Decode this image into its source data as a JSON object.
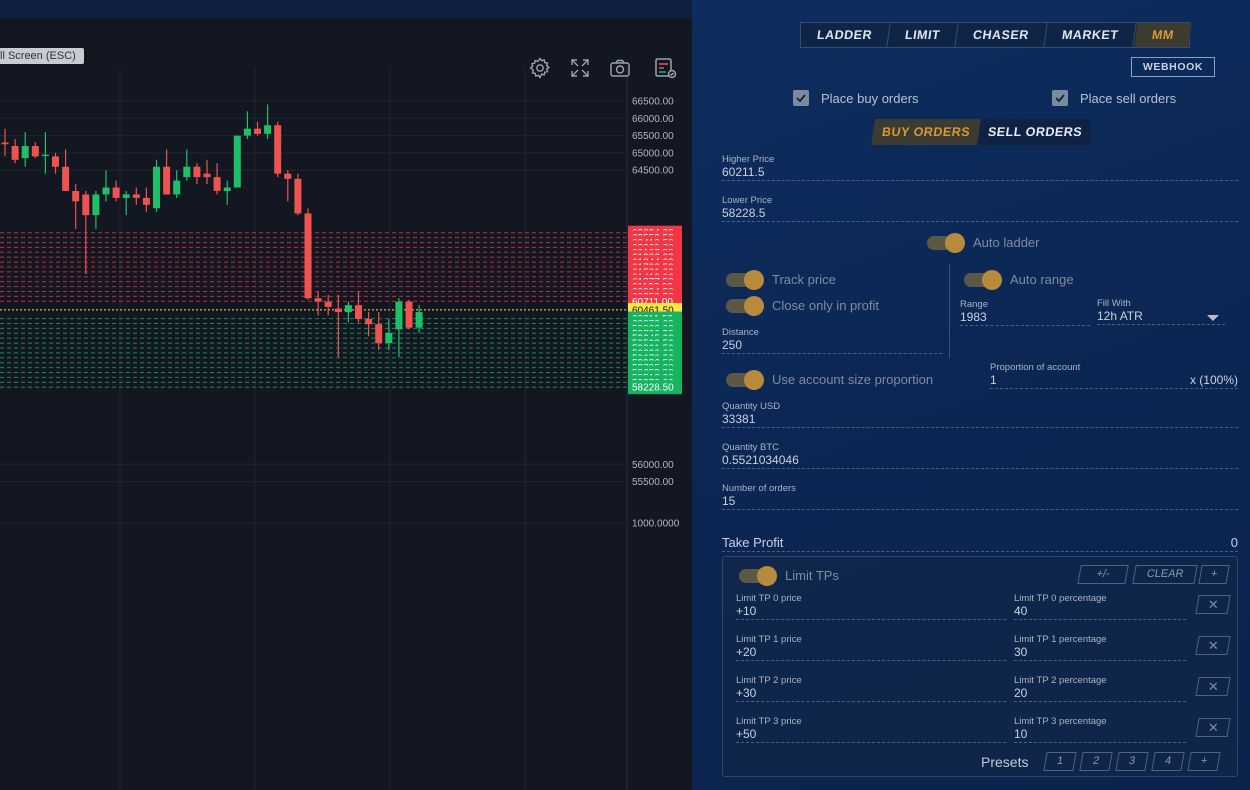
{
  "chart": {
    "fullscreen_badge": "ll Screen (ESC)",
    "toolbar_icons": [
      "gear-icon",
      "expand-icon",
      "camera-icon",
      "indicator-icon"
    ],
    "price_axis": [
      {
        "label": "66500.00",
        "price": 66500,
        "type": "axis"
      },
      {
        "label": "66000.00",
        "price": 66000,
        "type": "axis"
      },
      {
        "label": "65500.00",
        "price": 65500,
        "type": "axis"
      },
      {
        "label": "65000.00",
        "price": 65000,
        "type": "axis"
      },
      {
        "label": "64500.00",
        "price": 64500,
        "type": "axis"
      },
      {
        "label": "62694.00",
        "price": 62694,
        "type": "sell"
      },
      {
        "label": "62552.50",
        "price": 62552.5,
        "type": "sell"
      },
      {
        "label": "62410.50",
        "price": 62410.5,
        "type": "sell"
      },
      {
        "label": "62269.00",
        "price": 62269,
        "type": "sell"
      },
      {
        "label": "62127.50",
        "price": 62127.5,
        "type": "sell"
      },
      {
        "label": "61986.00",
        "price": 61986,
        "type": "sell"
      },
      {
        "label": "61844.00",
        "price": 61844,
        "type": "sell"
      },
      {
        "label": "61702.50",
        "price": 61702.5,
        "type": "sell"
      },
      {
        "label": "61561.00",
        "price": 61561,
        "type": "sell"
      },
      {
        "label": "61419.00",
        "price": 61419,
        "type": "sell"
      },
      {
        "label": "61277.50",
        "price": 61277.5,
        "type": "sell"
      },
      {
        "label": "61136.00",
        "price": 61136,
        "type": "sell"
      },
      {
        "label": "60994.50",
        "price": 60994.5,
        "type": "sell"
      },
      {
        "label": "60852.50",
        "price": 60852.5,
        "type": "sell"
      },
      {
        "label": "60711.00",
        "price": 60711,
        "type": "sell"
      },
      {
        "label": "60461.50",
        "price": 60461.5,
        "type": "current"
      },
      {
        "label": "60211.50",
        "price": 60211.5,
        "type": "buy"
      },
      {
        "label": "60070.00",
        "price": 60070,
        "type": "buy"
      },
      {
        "label": "59928.00",
        "price": 59928,
        "type": "buy"
      },
      {
        "label": "59786.50",
        "price": 59786.5,
        "type": "buy"
      },
      {
        "label": "59645.00",
        "price": 59645,
        "type": "buy"
      },
      {
        "label": "59503.50",
        "price": 59503.5,
        "type": "buy"
      },
      {
        "label": "59361.50",
        "price": 59361.5,
        "type": "buy"
      },
      {
        "label": "59220.00",
        "price": 59220,
        "type": "buy"
      },
      {
        "label": "59078.50",
        "price": 59078.5,
        "type": "buy"
      },
      {
        "label": "58936.50",
        "price": 58936.5,
        "type": "buy"
      },
      {
        "label": "58795.00",
        "price": 58795,
        "type": "buy"
      },
      {
        "label": "58653.50",
        "price": 58653.5,
        "type": "buy"
      },
      {
        "label": "58512.00",
        "price": 58512,
        "type": "buy"
      },
      {
        "label": "58370.00",
        "price": 58370,
        "type": "buy"
      },
      {
        "label": "58228.50",
        "price": 58228.5,
        "type": "buy"
      },
      {
        "label": "56000.00",
        "price": 56000,
        "type": "axis"
      },
      {
        "label": "55500.00",
        "price": 55500,
        "type": "axis"
      },
      {
        "label": "1000.0000",
        "price": 54300,
        "type": "axis"
      }
    ],
    "candles": [
      {
        "o": 65300,
        "h": 65700,
        "l": 64900,
        "c": 65250
      },
      {
        "o": 65200,
        "h": 65400,
        "l": 64700,
        "c": 64800
      },
      {
        "o": 64850,
        "h": 65600,
        "l": 64600,
        "c": 65200
      },
      {
        "o": 65200,
        "h": 65300,
        "l": 64850,
        "c": 64900
      },
      {
        "o": 64950,
        "h": 65600,
        "l": 64400,
        "c": 64950
      },
      {
        "o": 64900,
        "h": 65000,
        "l": 64400,
        "c": 64600
      },
      {
        "o": 64600,
        "h": 65100,
        "l": 63900,
        "c": 63900
      },
      {
        "o": 63900,
        "h": 64100,
        "l": 62800,
        "c": 63600
      },
      {
        "o": 63800,
        "h": 63900,
        "l": 61500,
        "c": 63200
      },
      {
        "o": 63200,
        "h": 63900,
        "l": 62800,
        "c": 63800
      },
      {
        "o": 63800,
        "h": 64500,
        "l": 63600,
        "c": 64000
      },
      {
        "o": 64000,
        "h": 64200,
        "l": 63600,
        "c": 63700
      },
      {
        "o": 63700,
        "h": 63900,
        "l": 63200,
        "c": 63800
      },
      {
        "o": 63800,
        "h": 64000,
        "l": 63500,
        "c": 63700
      },
      {
        "o": 63700,
        "h": 64000,
        "l": 63300,
        "c": 63500
      },
      {
        "o": 63400,
        "h": 64800,
        "l": 63300,
        "c": 64600
      },
      {
        "o": 64600,
        "h": 65100,
        "l": 63800,
        "c": 63800
      },
      {
        "o": 63800,
        "h": 64500,
        "l": 63700,
        "c": 64200
      },
      {
        "o": 64300,
        "h": 65100,
        "l": 64200,
        "c": 64600
      },
      {
        "o": 64600,
        "h": 64700,
        "l": 64100,
        "c": 64300
      },
      {
        "o": 64400,
        "h": 64800,
        "l": 64100,
        "c": 64300
      },
      {
        "o": 64300,
        "h": 64700,
        "l": 63800,
        "c": 63900
      },
      {
        "o": 63900,
        "h": 64200,
        "l": 63500,
        "c": 64000
      },
      {
        "o": 64000,
        "h": 65500,
        "l": 64000,
        "c": 65500
      },
      {
        "o": 65500,
        "h": 66200,
        "l": 65400,
        "c": 65700
      },
      {
        "o": 65700,
        "h": 65900,
        "l": 65500,
        "c": 65550
      },
      {
        "o": 65550,
        "h": 66400,
        "l": 65400,
        "c": 65800
      },
      {
        "o": 65800,
        "h": 65900,
        "l": 64300,
        "c": 64400
      },
      {
        "o": 64400,
        "h": 64500,
        "l": 63600,
        "c": 64250
      },
      {
        "o": 64250,
        "h": 64400,
        "l": 63200,
        "c": 63250
      },
      {
        "o": 63250,
        "h": 63400,
        "l": 60750,
        "c": 60800
      },
      {
        "o": 60800,
        "h": 61000,
        "l": 60300,
        "c": 60700
      },
      {
        "o": 60700,
        "h": 60900,
        "l": 60300,
        "c": 60550
      },
      {
        "o": 60500,
        "h": 60900,
        "l": 59100,
        "c": 60400
      },
      {
        "o": 60400,
        "h": 60700,
        "l": 60100,
        "c": 60600
      },
      {
        "o": 60600,
        "h": 61000,
        "l": 60100,
        "c": 60200
      },
      {
        "o": 60200,
        "h": 60400,
        "l": 59700,
        "c": 60050
      },
      {
        "o": 60050,
        "h": 60400,
        "l": 59300,
        "c": 59500
      },
      {
        "o": 59500,
        "h": 60200,
        "l": 59300,
        "c": 59800
      },
      {
        "o": 59900,
        "h": 60800,
        "l": 59100,
        "c": 60700
      },
      {
        "o": 60700,
        "h": 60750,
        "l": 59900,
        "c": 59950
      },
      {
        "o": 59950,
        "h": 60600,
        "l": 59800,
        "c": 60400
      }
    ]
  },
  "panel": {
    "tabs": [
      "LADDER",
      "LIMIT",
      "CHASER",
      "MARKET",
      "MM"
    ],
    "webhook": "WEBHOOK",
    "place_buy_orders": "Place buy orders",
    "place_sell_orders": "Place sell orders",
    "order_tabs": [
      "BUY ORDERS",
      "SELL ORDERS"
    ],
    "higher_price": {
      "label": "Higher Price",
      "value": "60211.5"
    },
    "lower_price": {
      "label": "Lower Price",
      "value": "58228.5"
    },
    "auto_ladder": "Auto ladder",
    "track_price": "Track price",
    "close_only_in_profit": "Close only in profit",
    "auto_range": "Auto range",
    "range": {
      "label": "Range",
      "value": "1983"
    },
    "fill_with": {
      "label": "Fill With",
      "value": "12h ATR"
    },
    "distance": {
      "label": "Distance",
      "value": "250"
    },
    "use_account_size": "Use account size proportion",
    "proportion": {
      "label": "Proportion of account",
      "value": "1",
      "suffix": "x (100%)"
    },
    "quantity_usd": {
      "label": "Quantity USD",
      "value": "33381"
    },
    "quantity_btc": {
      "label": "Quantity BTC",
      "value": "0.5521034046"
    },
    "number_of_orders": {
      "label": "Number of orders",
      "value": "15"
    },
    "take_profit": {
      "label": "Take Profit",
      "value": "0"
    },
    "limit_tps": "Limit TPs",
    "tp_buttons": {
      "plus_minus": "+/-",
      "clear": "CLEAR",
      "add": "+"
    },
    "tp_rows": [
      {
        "price_label": "Limit TP 0 price",
        "price": "+10",
        "pct_label": "Limit TP 0 percentage",
        "pct": "40"
      },
      {
        "price_label": "Limit TP 1 price",
        "price": "+20",
        "pct_label": "Limit TP 1 percentage",
        "pct": "30"
      },
      {
        "price_label": "Limit TP 2 price",
        "price": "+30",
        "pct_label": "Limit TP 2 percentage",
        "pct": "20"
      },
      {
        "price_label": "Limit TP 3 price",
        "price": "+50",
        "pct_label": "Limit TP 3 percentage",
        "pct": "10"
      }
    ],
    "presets_label": "Presets",
    "presets": [
      "1",
      "2",
      "3",
      "4",
      "+"
    ]
  },
  "colors": {
    "bull": "#26a69a",
    "bull_bright": "#1fbf6a",
    "bear": "#ef5350",
    "sell_level": "#f23645",
    "buy_level": "#16b361",
    "current": "#f5e642",
    "accent": "#d79a33"
  }
}
